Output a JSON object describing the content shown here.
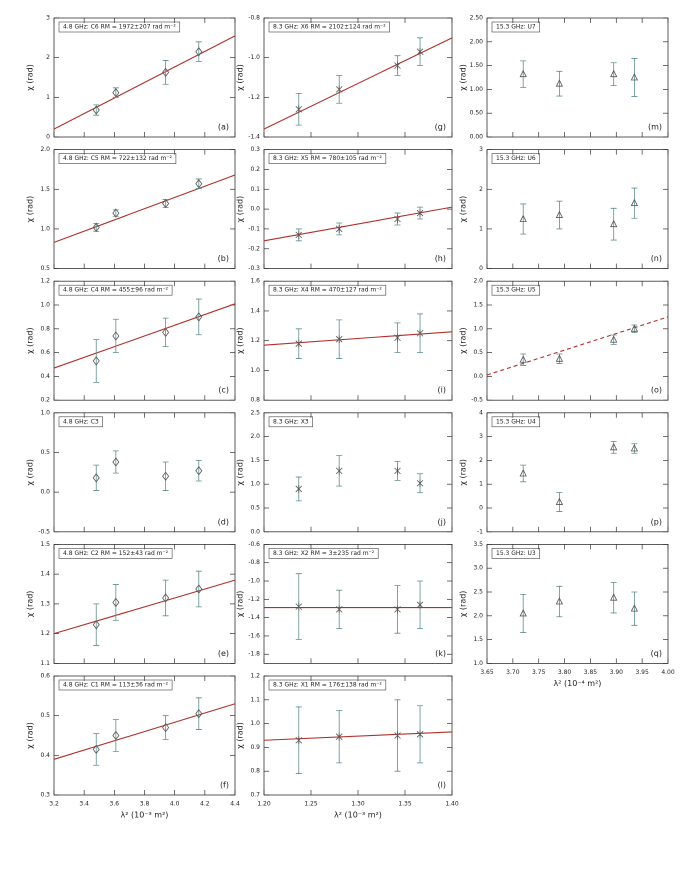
{
  "chart_data": [
    {
      "type": "scatter",
      "label": "4.8 GHz: C6 RM = 1972±207 rad m⁻²",
      "panel": "(a)",
      "ylabel": "χ (rad)",
      "marker": "diamond",
      "x": [
        3.48,
        3.61,
        3.94,
        4.16
      ],
      "values": [
        0.68,
        1.12,
        1.63,
        2.15
      ],
      "errors": [
        0.13,
        0.12,
        0.3,
        0.25
      ],
      "xlim": [
        3.2,
        4.4
      ],
      "xticks": [
        3.2,
        3.4,
        3.6,
        3.8,
        4,
        4.2,
        4.4
      ],
      "ylim": [
        0,
        3
      ],
      "yticks": [
        0,
        1,
        2,
        3
      ],
      "fit": {
        "x": [
          3.2,
          4.4
        ],
        "y": [
          0.2,
          2.55
        ]
      }
    },
    {
      "type": "scatter",
      "label": "4.8 GHz: C5 RM = 722±132 rad m⁻²",
      "panel": "(b)",
      "ylabel": "χ (rad)",
      "marker": "diamond",
      "x": [
        3.48,
        3.61,
        3.94,
        4.16
      ],
      "values": [
        1.02,
        1.2,
        1.32,
        1.57
      ],
      "errors": [
        0.05,
        0.04,
        0.05,
        0.06
      ],
      "xlim": [
        3.2,
        4.4
      ],
      "xticks": [
        3.2,
        3.4,
        3.6,
        3.8,
        4,
        4.2,
        4.4
      ],
      "ylim": [
        0.5,
        2.0
      ],
      "yticks": [
        0.5,
        {
          "value": 1,
          "label": "1.0"
        },
        1.5,
        {
          "value": 2,
          "label": "2.0"
        }
      ],
      "fit": {
        "x": [
          3.2,
          4.4
        ],
        "y": [
          0.83,
          1.68
        ]
      }
    },
    {
      "type": "scatter",
      "label": "4.8 GHz: C4 RM = 455±96 rad m⁻²",
      "panel": "(c)",
      "ylabel": "χ (rad)",
      "marker": "diamond",
      "x": [
        3.48,
        3.61,
        3.94,
        4.16
      ],
      "values": [
        0.53,
        0.74,
        0.77,
        0.9
      ],
      "errors": [
        0.18,
        0.14,
        0.12,
        0.15
      ],
      "xlim": [
        3.2,
        4.4
      ],
      "xticks": [
        3.2,
        3.4,
        3.6,
        3.8,
        4,
        4.2,
        4.4
      ],
      "ylim": [
        0.2,
        1.2
      ],
      "yticks": [
        0.2,
        0.4,
        0.6,
        0.8,
        {
          "value": 1,
          "label": "1.0"
        },
        1.2
      ],
      "fit": {
        "x": [
          3.2,
          4.4
        ],
        "y": [
          0.47,
          1.01
        ]
      }
    },
    {
      "type": "scatter",
      "label": "4.8 GHz: C3",
      "panel": "(d)",
      "ylabel": "χ (rad)",
      "marker": "diamond",
      "x": [
        3.48,
        3.61,
        3.94,
        4.16
      ],
      "values": [
        0.18,
        0.38,
        0.2,
        0.27
      ],
      "errors": [
        0.16,
        0.14,
        0.18,
        0.13
      ],
      "xlim": [
        3.2,
        4.4
      ],
      "xticks": [
        3.2,
        3.4,
        3.6,
        3.8,
        4,
        4.2,
        4.4
      ],
      "ylim": [
        -0.5,
        1.0
      ],
      "yticks": [
        -0.5,
        {
          "value": 0,
          "label": "0.0"
        },
        0.5,
        {
          "value": 1,
          "label": "1.0"
        }
      ]
    },
    {
      "type": "scatter",
      "label": "4.8 GHz: C2 RM = 152±43 rad m⁻²",
      "panel": "(e)",
      "ylabel": "χ (rad)",
      "marker": "diamond",
      "x": [
        3.48,
        3.61,
        3.94,
        4.16
      ],
      "values": [
        1.23,
        1.305,
        1.32,
        1.35
      ],
      "errors": [
        0.07,
        0.06,
        0.06,
        0.06
      ],
      "xlim": [
        3.2,
        4.4
      ],
      "xticks": [
        3.2,
        3.4,
        3.6,
        3.8,
        4,
        4.2,
        4.4
      ],
      "ylim": [
        1.1,
        1.5
      ],
      "yticks": [
        1.1,
        1.2,
        1.3,
        1.4,
        1.5
      ],
      "fit": {
        "x": [
          3.2,
          4.4
        ],
        "y": [
          1.2,
          1.38
        ]
      }
    },
    {
      "type": "scatter",
      "label": "4.8 GHz: C1 RM = 113±36 rad m⁻²",
      "panel": "(f)",
      "ylabel": "χ (rad)",
      "xlabel": "λ² (10⁻³ m²)",
      "marker": "diamond",
      "x": [
        3.48,
        3.61,
        3.94,
        4.16
      ],
      "values": [
        0.415,
        0.45,
        0.47,
        0.505
      ],
      "errors": [
        0.04,
        0.04,
        0.03,
        0.04
      ],
      "xlim": [
        3.2,
        4.4
      ],
      "xticks": [
        3.2,
        3.4,
        3.6,
        3.8,
        {
          "value": 4,
          "label": "4.0"
        },
        4.2,
        4.4
      ],
      "ylim": [
        0.3,
        0.6
      ],
      "yticks": [
        0.3,
        0.4,
        0.5,
        0.6
      ],
      "fit": {
        "x": [
          3.2,
          4.4
        ],
        "y": [
          0.39,
          0.53
        ]
      }
    },
    {
      "type": "scatter",
      "label": "8.3 GHz: X6 RM = 2102±124 rad m⁻²",
      "panel": "(g)",
      "ylabel": "χ (rad)",
      "marker": "asterisk",
      "x": [
        1.237,
        1.28,
        1.342,
        1.366
      ],
      "values": [
        -1.26,
        -1.16,
        -1.04,
        -0.97
      ],
      "errors": [
        0.08,
        0.07,
        0.05,
        0.07
      ],
      "xlim": [
        1.2,
        1.4
      ],
      "xticks": [
        1.2,
        1.25,
        1.3,
        1.35,
        1.4
      ],
      "ylim": [
        -1.4,
        -0.8
      ],
      "yticks": [
        -1.4,
        -1.2,
        {
          "value": -1,
          "label": "-1.0"
        },
        -0.8
      ],
      "fit": {
        "x": [
          1.2,
          1.4
        ],
        "y": [
          -1.36,
          -0.9
        ]
      }
    },
    {
      "type": "scatter",
      "label": "8.3 GHz: X5 RM = 780±105 rad m⁻²",
      "panel": "(h)",
      "ylabel": "χ (rad)",
      "marker": "asterisk",
      "x": [
        1.237,
        1.28,
        1.342,
        1.366
      ],
      "values": [
        -0.13,
        -0.1,
        -0.05,
        -0.02
      ],
      "errors": [
        0.03,
        0.03,
        0.03,
        0.03
      ],
      "xlim": [
        1.2,
        1.4
      ],
      "xticks": [
        1.2,
        1.25,
        1.3,
        1.35,
        1.4
      ],
      "ylim": [
        -0.3,
        0.3
      ],
      "yticks": [
        -0.3,
        -0.2,
        -0.1,
        {
          "value": 0,
          "label": "0.0"
        },
        0.1,
        0.2,
        0.3
      ],
      "fit": {
        "x": [
          1.2,
          1.4
        ],
        "y": [
          -0.16,
          0.01
        ]
      }
    },
    {
      "type": "scatter",
      "label": "8.3 GHz: X4 RM = 470±127 rad m⁻²",
      "panel": "(i)",
      "ylabel": "χ (rad)",
      "marker": "asterisk",
      "x": [
        1.237,
        1.28,
        1.342,
        1.366
      ],
      "values": [
        1.18,
        1.21,
        1.22,
        1.25
      ],
      "errors": [
        0.1,
        0.13,
        0.1,
        0.13
      ],
      "xlim": [
        1.2,
        1.4
      ],
      "xticks": [
        1.2,
        1.25,
        1.3,
        1.35,
        1.4
      ],
      "ylim": [
        0.8,
        1.6
      ],
      "yticks": [
        0.8,
        {
          "value": 1,
          "label": "1.0"
        },
        1.2,
        1.4,
        1.6
      ],
      "fit": {
        "x": [
          1.2,
          1.4
        ],
        "y": [
          1.17,
          1.26
        ]
      }
    },
    {
      "type": "scatter",
      "label": "8.3 GHz: X3",
      "panel": "(j)",
      "ylabel": "χ (rad)",
      "marker": "asterisk",
      "x": [
        1.237,
        1.28,
        1.342,
        1.366
      ],
      "values": [
        0.9,
        1.28,
        1.28,
        1.02
      ],
      "errors": [
        0.25,
        0.32,
        0.2,
        0.2
      ],
      "xlim": [
        1.2,
        1.4
      ],
      "xticks": [
        1.2,
        1.25,
        1.3,
        1.35,
        1.4
      ],
      "ylim": [
        0,
        2.5
      ],
      "yticks": [
        {
          "value": 0,
          "label": "0.0"
        },
        0.5,
        {
          "value": 1,
          "label": "1.0"
        },
        1.5,
        {
          "value": 2,
          "label": "2.0"
        },
        2.5
      ]
    },
    {
      "type": "scatter",
      "label": "8.3 GHz: X2 RM = 3±235 rad m⁻²",
      "panel": "(k)",
      "ylabel": "χ (rad)",
      "marker": "asterisk",
      "x": [
        1.237,
        1.28,
        1.342,
        1.366
      ],
      "values": [
        -1.28,
        -1.31,
        -1.31,
        -1.26
      ],
      "errors": [
        0.36,
        0.21,
        0.26,
        0.26
      ],
      "xlim": [
        1.2,
        1.4
      ],
      "xticks": [
        1.2,
        1.25,
        1.3,
        1.35,
        1.4
      ],
      "ylim": [
        -1.9,
        -0.6
      ],
      "yticks": [
        -1.8,
        -1.6,
        -1.4,
        -1.2,
        {
          "value": -1,
          "label": "-1.0"
        },
        -0.8,
        -0.6
      ],
      "fit": {
        "x": [
          1.2,
          1.4
        ],
        "y": [
          -1.29,
          -1.29
        ]
      }
    },
    {
      "type": "scatter",
      "label": "8.3 GHz: X1 RM = 176±138 rad m⁻²",
      "panel": "(l)",
      "ylabel": "χ (rad)",
      "xlabel": "λ² (10⁻³ m²)",
      "marker": "asterisk",
      "x": [
        1.237,
        1.28,
        1.342,
        1.366
      ],
      "values": [
        0.93,
        0.945,
        0.95,
        0.955
      ],
      "errors": [
        0.14,
        0.11,
        0.15,
        0.12
      ],
      "xlim": [
        1.2,
        1.4
      ],
      "xticks": [
        {
          "value": 1.2,
          "label": "1.20"
        },
        1.25,
        {
          "value": 1.3,
          "label": "1.30"
        },
        1.35,
        {
          "value": 1.4,
          "label": "1.40"
        }
      ],
      "ylim": [
        0.7,
        1.2
      ],
      "yticks": [
        0.7,
        0.8,
        0.9,
        {
          "value": 1,
          "label": "1.0"
        },
        1.1,
        1.2
      ],
      "fit": {
        "x": [
          1.2,
          1.4
        ],
        "y": [
          0.93,
          0.965
        ]
      }
    },
    {
      "type": "scatter",
      "label": "15.3 GHz: U7",
      "panel": "(m)",
      "ylabel": "χ (rad)",
      "marker": "triangle",
      "x": [
        3.72,
        3.79,
        3.895,
        3.935
      ],
      "values": [
        1.32,
        1.12,
        1.32,
        1.25
      ],
      "errors": [
        0.28,
        0.26,
        0.24,
        0.4
      ],
      "xlim": [
        3.65,
        4.0
      ],
      "xticks": [
        3.65,
        3.7,
        3.75,
        3.8,
        3.85,
        3.9,
        3.95,
        4
      ],
      "ylim": [
        0,
        2.5
      ],
      "yticks": [
        {
          "value": 0,
          "label": "0.00"
        },
        {
          "value": 0.5,
          "label": "0.50"
        },
        {
          "value": 1,
          "label": "1.00"
        },
        {
          "value": 1.5,
          "label": "1.50"
        },
        {
          "value": 2,
          "label": "2.00"
        },
        {
          "value": 2.5,
          "label": "2.50"
        }
      ]
    },
    {
      "type": "scatter",
      "label": "15.3 GHz: U6",
      "panel": "(n)",
      "ylabel": "χ (rad)",
      "marker": "triangle",
      "x": [
        3.72,
        3.79,
        3.895,
        3.935
      ],
      "values": [
        1.25,
        1.35,
        1.12,
        1.65
      ],
      "errors": [
        0.38,
        0.35,
        0.4,
        0.38
      ],
      "xlim": [
        3.65,
        4.0
      ],
      "xticks": [
        3.65,
        3.7,
        3.75,
        3.8,
        3.85,
        3.9,
        3.95,
        4
      ],
      "ylim": [
        0,
        3
      ],
      "yticks": [
        0,
        1,
        2,
        3
      ]
    },
    {
      "type": "scatter",
      "label": "15.3 GHz: U5",
      "panel": "(o)",
      "ylabel": "χ (rad)",
      "marker": "triangle",
      "x": [
        3.72,
        3.79,
        3.895,
        3.935
      ],
      "values": [
        0.35,
        0.37,
        0.77,
        1.0
      ],
      "errors": [
        0.12,
        0.1,
        0.1,
        0.08
      ],
      "xlim": [
        3.65,
        4.0
      ],
      "xticks": [
        3.65,
        3.7,
        3.75,
        3.8,
        3.85,
        3.9,
        3.95,
        4
      ],
      "ylim": [
        -0.5,
        2.0
      ],
      "yticks": [
        -0.5,
        {
          "value": 0,
          "label": "0.0"
        },
        0.5,
        {
          "value": 1,
          "label": "1.0"
        },
        1.5,
        {
          "value": 2,
          "label": "2.0"
        }
      ],
      "fit": {
        "x": [
          3.65,
          4.0
        ],
        "y": [
          0.03,
          1.25
        ]
      },
      "fit_dashed": true
    },
    {
      "type": "scatter",
      "label": "15.3 GHz: U4",
      "panel": "(p)",
      "ylabel": "χ (rad)",
      "marker": "triangle",
      "x": [
        3.72,
        3.79,
        3.895,
        3.935
      ],
      "values": [
        1.45,
        0.25,
        2.55,
        2.5
      ],
      "errors": [
        0.35,
        0.4,
        0.25,
        0.2
      ],
      "xlim": [
        3.65,
        4.0
      ],
      "xticks": [
        3.65,
        3.7,
        3.75,
        3.8,
        3.85,
        3.9,
        3.95,
        4
      ],
      "ylim": [
        -1,
        4
      ],
      "yticks": [
        -1,
        0,
        1,
        2,
        3,
        4
      ]
    },
    {
      "type": "scatter",
      "label": "15.3 GHz: U3",
      "panel": "(q)",
      "ylabel": "χ (rad)",
      "xlabel": "λ² (10⁻⁴ m²)",
      "marker": "triangle",
      "x": [
        3.72,
        3.79,
        3.895,
        3.935
      ],
      "values": [
        2.05,
        2.3,
        2.38,
        2.15
      ],
      "errors": [
        0.4,
        0.32,
        0.32,
        0.35
      ],
      "xlim": [
        3.65,
        4.0
      ],
      "xticks": [
        3.65,
        {
          "value": 3.7,
          "label": "3.70"
        },
        3.75,
        {
          "value": 3.8,
          "label": "3.80"
        },
        3.85,
        {
          "value": 3.9,
          "label": "3.90"
        },
        3.95,
        {
          "value": 4,
          "label": "4.00"
        }
      ],
      "ylim": [
        1.0,
        3.5
      ],
      "yticks": [
        {
          "value": 1,
          "label": "1.0"
        },
        1.5,
        {
          "value": 2,
          "label": "2.0"
        },
        2.5,
        {
          "value": 3,
          "label": "3.0"
        },
        3.5
      ]
    }
  ]
}
